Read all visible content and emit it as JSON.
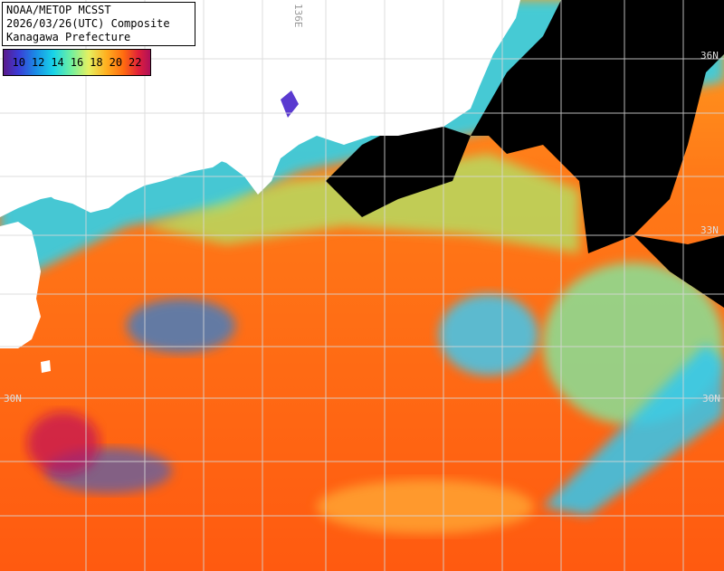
{
  "header": {
    "line1": "NOAA/METOP MCSST",
    "line2": "2026/03/26(UTC) Composite",
    "line3": "Kanagawa Prefecture"
  },
  "legend": {
    "labels": [
      "10",
      "12",
      "14",
      "16",
      "18",
      "20",
      "22"
    ],
    "colors": [
      "#5a1a8c",
      "#3b3bd6",
      "#1a8ce6",
      "#18d4e8",
      "#70f0a0",
      "#e6f060",
      "#ffb020",
      "#ff6a10",
      "#e0203a",
      "#b0105a"
    ]
  },
  "grid": {
    "lat_labels": {
      "top": "36N",
      "middle": "33N",
      "left": "30N",
      "right": "30N"
    },
    "lon_label": "136E"
  },
  "colors": {
    "land": "#ffffff",
    "no_data": "#000000",
    "warm_water": "#ff7a1a",
    "cool_water": "#20c8e8",
    "grid_line": "#d8d8d8"
  }
}
